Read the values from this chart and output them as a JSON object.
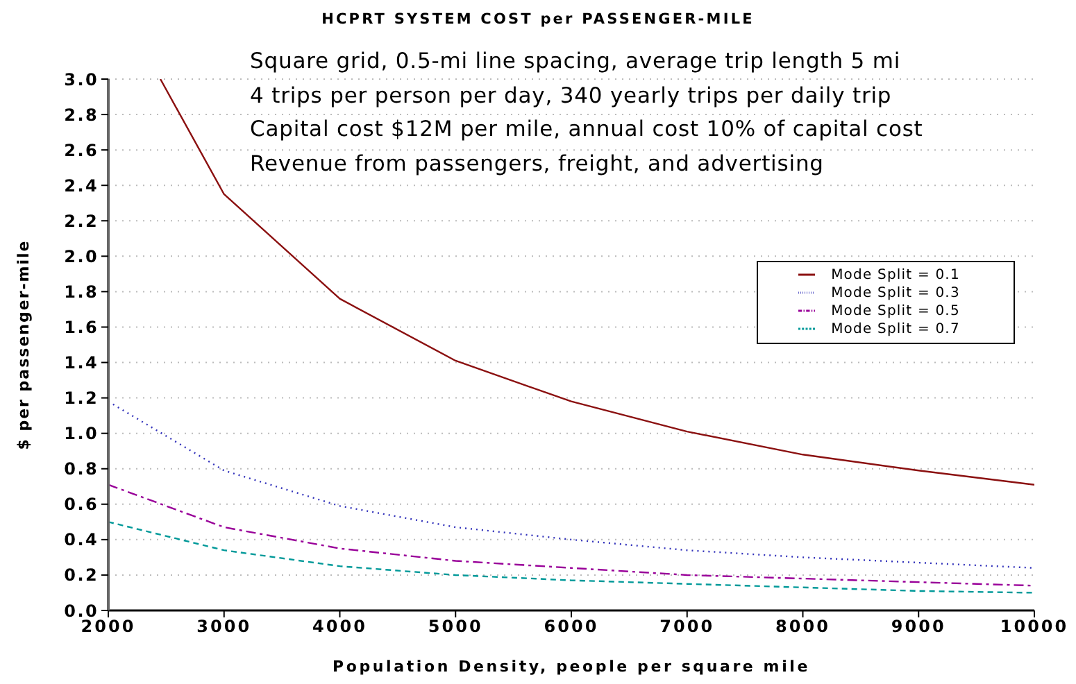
{
  "chart_data": {
    "type": "line",
    "title": "HCPRT SYSTEM COST per PASSENGER-MILE",
    "xlabel": "Population Density, people per square mile",
    "ylabel": "$ per passenger-mile",
    "annotations": [
      "Square grid, 0.5-mi line spacing, average trip length 5 mi",
      "4 trips per person per day, 340 yearly trips per daily trip",
      "Capital cost $12M per mile, annual cost 10% of capital cost",
      "Revenue from passengers, freight, and advertising"
    ],
    "x": [
      2000,
      3000,
      4000,
      5000,
      6000,
      7000,
      8000,
      9000,
      10000
    ],
    "series": [
      {
        "name": "Mode Split = 0.1",
        "color": "#8b1010",
        "line_style": "solid",
        "x": [
          2450,
          3000,
          4000,
          5000,
          6000,
          7000,
          8000,
          9000,
          10000
        ],
        "values": [
          3.0,
          2.35,
          1.76,
          1.41,
          1.18,
          1.01,
          0.88,
          0.79,
          0.71
        ]
      },
      {
        "name": "Mode Split = 0.3",
        "color": "#3333bb",
        "line_style": "dotted",
        "values": [
          1.18,
          0.79,
          0.59,
          0.47,
          0.4,
          0.34,
          0.3,
          0.27,
          0.24
        ]
      },
      {
        "name": "Mode Split = 0.5",
        "color": "#990099",
        "line_style": "dashdot",
        "values": [
          0.71,
          0.47,
          0.35,
          0.28,
          0.24,
          0.2,
          0.18,
          0.16,
          0.14
        ]
      },
      {
        "name": "Mode Split = 0.7",
        "color": "#009999",
        "line_style": "dashed",
        "values": [
          0.5,
          0.34,
          0.25,
          0.2,
          0.17,
          0.15,
          0.13,
          0.11,
          0.1
        ]
      }
    ],
    "xlim": [
      2000,
      10000
    ],
    "xticks": [
      2000,
      3000,
      4000,
      5000,
      6000,
      7000,
      8000,
      9000,
      10000
    ],
    "ylim": [
      0,
      3.0
    ],
    "yticks": [
      {
        "value": 0,
        "label": "0.0"
      },
      {
        "value": 0.2,
        "label": "0.2"
      },
      {
        "value": 0.4,
        "label": "0.4"
      },
      {
        "value": 0.6,
        "label": "0.6"
      },
      {
        "value": 0.8,
        "label": "0.8"
      },
      {
        "value": 1.0,
        "label": "1.0"
      },
      {
        "value": 1.2,
        "label": "1.2"
      },
      {
        "value": 1.4,
        "label": "1.4"
      },
      {
        "value": 1.6,
        "label": "1.6"
      },
      {
        "value": 1.8,
        "label": "1.8"
      },
      {
        "value": 2.0,
        "label": "2.0"
      },
      {
        "value": 2.2,
        "label": "2.2"
      },
      {
        "value": 2.4,
        "label": "2.4"
      },
      {
        "value": 2.6,
        "label": "2.6"
      },
      {
        "value": 2.8,
        "label": "2.8"
      },
      {
        "value": 3.0,
        "label": "3.0"
      }
    ],
    "grid": "y",
    "legend": "right",
    "marker": "none"
  }
}
